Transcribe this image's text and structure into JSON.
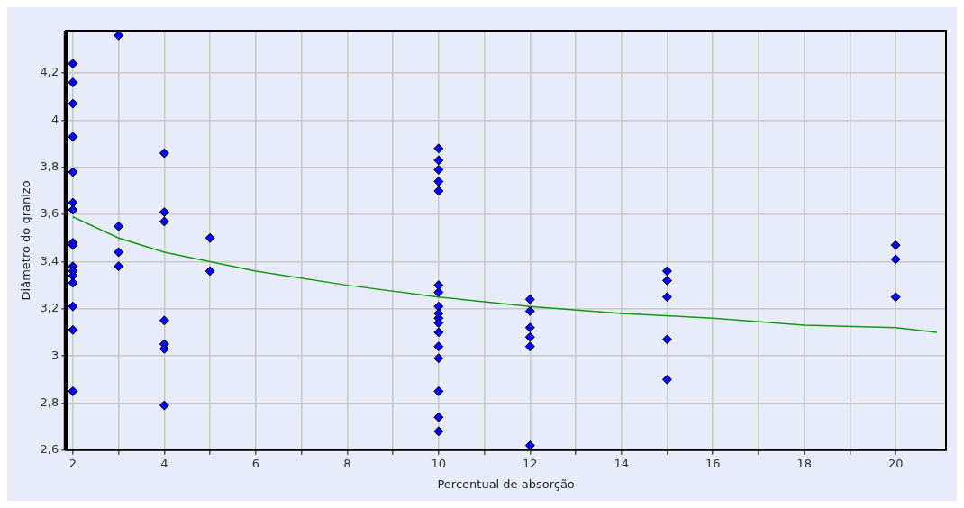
{
  "chart_data": {
    "type": "scatter",
    "xlabel": "Percentual de absorção",
    "ylabel": "Diâmetro do granizo",
    "xlim": [
      1.85,
      21.1
    ],
    "ylim": [
      2.6,
      4.38
    ],
    "xticks": [
      2,
      {
        "value": 3,
        "label": null
      },
      4,
      {
        "value": 5,
        "label": null
      },
      6,
      {
        "value": 7,
        "label": null
      },
      8,
      {
        "value": 9,
        "label": null
      },
      10,
      {
        "value": 11,
        "label": null
      },
      12,
      {
        "value": 13,
        "label": null
      },
      14,
      {
        "value": 15,
        "label": null
      },
      16,
      {
        "value": 17,
        "label": null
      },
      18,
      {
        "value": 19,
        "label": null
      },
      20
    ],
    "yticks": [
      {
        "value": 2.6,
        "label": "2,6"
      },
      {
        "value": 2.8,
        "label": "2,8"
      },
      3,
      {
        "value": 3.2,
        "label": "3,2"
      },
      {
        "value": 3.4,
        "label": "3,4"
      },
      {
        "value": 3.6,
        "label": "3,6"
      },
      {
        "value": 3.8,
        "label": "3,8"
      },
      4,
      {
        "value": 4.2,
        "label": "4,2"
      }
    ],
    "grid": true,
    "legend": false,
    "series": [
      {
        "color": "#0000ff",
        "marker": "diamond",
        "x": [
          2,
          2,
          2,
          2,
          2,
          2,
          2,
          2,
          2,
          2,
          2,
          2,
          2,
          2,
          2,
          2,
          3,
          3,
          3,
          3,
          4,
          4,
          4,
          4,
          4,
          4,
          4,
          5,
          5,
          10,
          10,
          10,
          10,
          10,
          10,
          10,
          10,
          10,
          10,
          10,
          10,
          10,
          10,
          10,
          10,
          10,
          12,
          12,
          12,
          12,
          12,
          12,
          15,
          15,
          15,
          15,
          15,
          20,
          20,
          20
        ],
        "values": [
          4.24,
          4.16,
          4.07,
          3.93,
          3.78,
          3.65,
          3.62,
          3.48,
          3.47,
          3.38,
          3.36,
          3.34,
          3.31,
          3.21,
          3.11,
          2.85,
          4.36,
          3.55,
          3.44,
          3.38,
          3.86,
          3.61,
          3.57,
          3.15,
          3.05,
          3.03,
          2.79,
          3.5,
          3.36,
          3.88,
          3.83,
          3.79,
          3.74,
          3.7,
          3.3,
          3.27,
          3.21,
          3.18,
          3.16,
          3.14,
          3.1,
          3.04,
          2.99,
          2.85,
          2.74,
          2.68,
          3.24,
          3.19,
          3.12,
          3.08,
          3.04,
          2.62,
          3.36,
          3.32,
          3.25,
          3.07,
          2.9,
          3.47,
          3.41,
          3.25
        ]
      },
      {
        "type": "line",
        "color": "#109910",
        "marker": "none",
        "x": [
          2,
          3,
          4,
          5,
          6,
          8,
          10,
          12,
          14,
          16,
          18,
          20,
          20.9
        ],
        "values": [
          3.59,
          3.5,
          3.44,
          3.4,
          3.36,
          3.3,
          3.25,
          3.21,
          3.18,
          3.16,
          3.13,
          3.12,
          3.1
        ]
      }
    ]
  }
}
